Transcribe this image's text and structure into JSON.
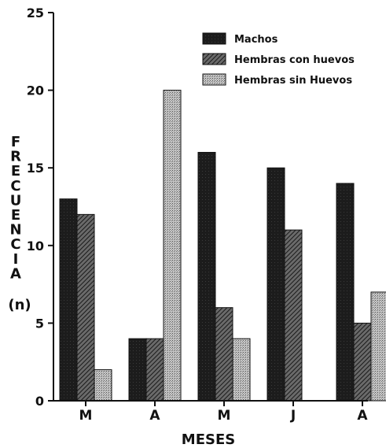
{
  "chart_data": {
    "type": "bar",
    "title": "",
    "xlabel": "MESES",
    "ylabel_letters": [
      "F",
      "R",
      "E",
      "C",
      "U",
      "E",
      "N",
      "C",
      "I",
      "A"
    ],
    "ylabel_unit": "(n)",
    "ylim": [
      0,
      25
    ],
    "yticks": [
      0,
      5,
      10,
      15,
      20,
      25
    ],
    "categories": [
      "M",
      "A",
      "M",
      "J",
      "A"
    ],
    "series": [
      {
        "name": "Machos",
        "values": [
          13,
          4,
          16,
          15,
          14
        ],
        "pattern": "dark"
      },
      {
        "name": "Hembras con huevos",
        "values": [
          12,
          4,
          6,
          11,
          5
        ],
        "pattern": "hatch"
      },
      {
        "name": "Hembras sin Huevos",
        "values": [
          2,
          20,
          4,
          null,
          7
        ],
        "pattern": "dotted"
      }
    ],
    "legend_position": "top-right",
    "grid": false,
    "colors": {
      "ink": "#111111",
      "dark_fill": "#1c1c1c",
      "hatch_bg": "#5a5a5a",
      "dotted_bg": "#bdbdbd"
    }
  }
}
